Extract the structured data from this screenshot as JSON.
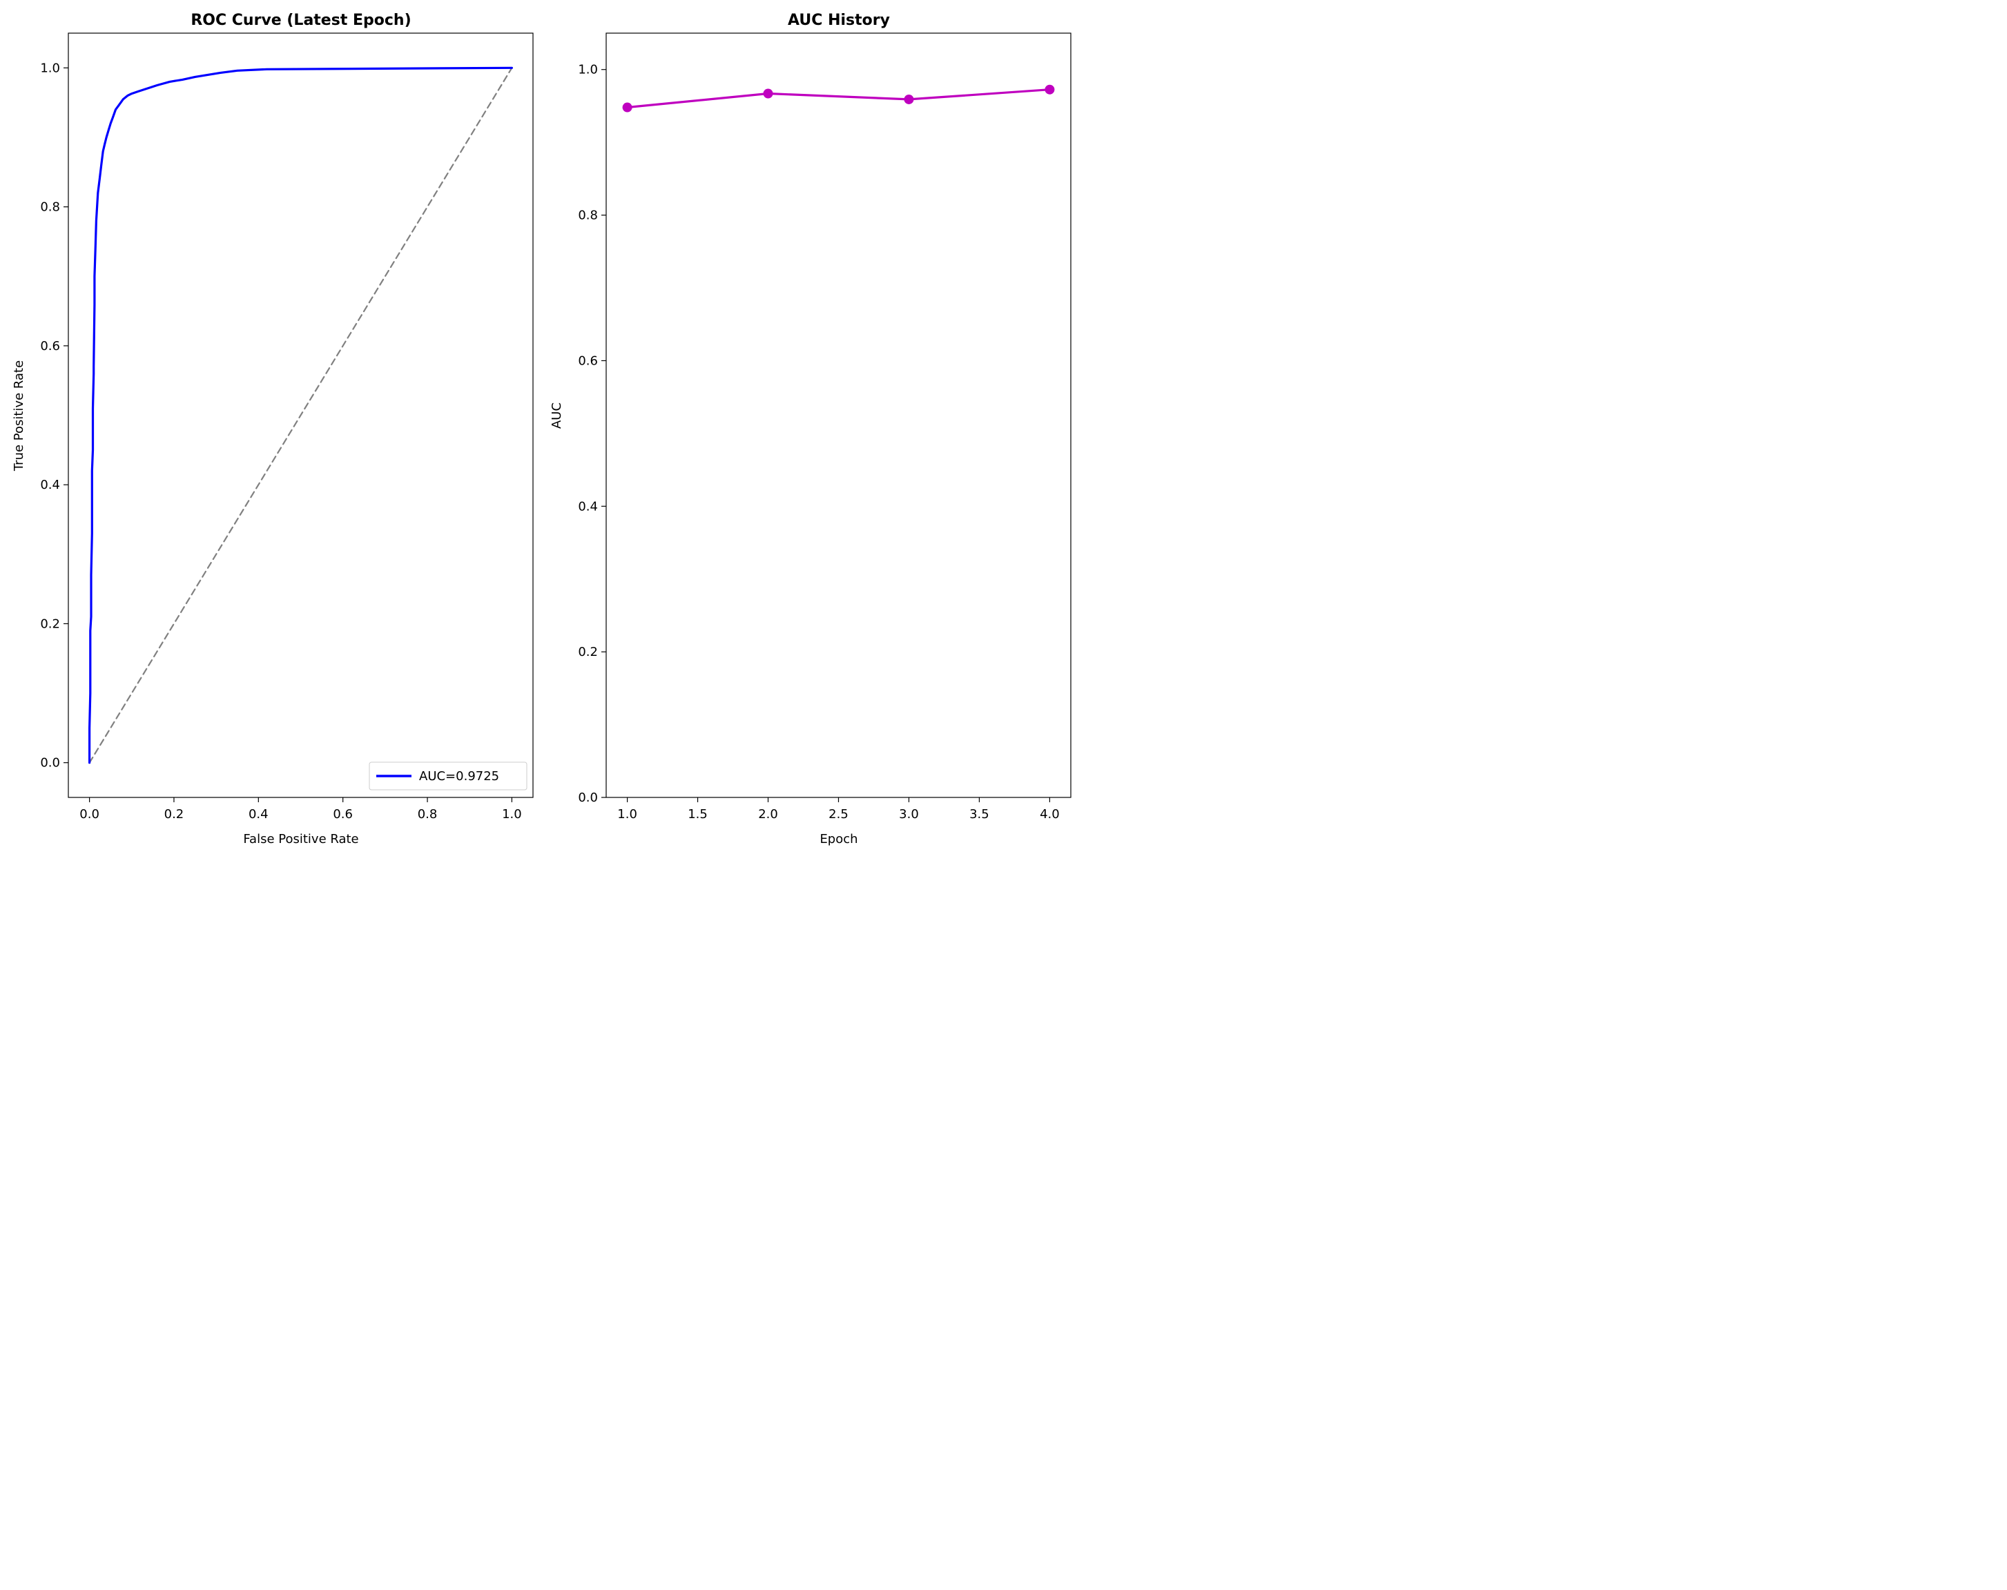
{
  "chart_data": [
    {
      "type": "line",
      "title": "ROC Curve (Latest Epoch)",
      "xlabel": "False Positive Rate",
      "ylabel": "True Positive Rate",
      "xlim": [
        -0.05,
        1.05
      ],
      "ylim": [
        -0.05,
        1.05
      ],
      "xticks": [
        0.0,
        0.2,
        0.4,
        0.6,
        0.8,
        1.0
      ],
      "yticks": [
        0.0,
        0.2,
        0.4,
        0.6,
        0.8,
        1.0
      ],
      "xtick_labels": [
        "0.0",
        "0.2",
        "0.4",
        "0.6",
        "0.8",
        "1.0"
      ],
      "ytick_labels": [
        "0.0",
        "0.2",
        "0.4",
        "0.6",
        "0.8",
        "1.0"
      ],
      "grid": false,
      "legend_position": "lower-right",
      "series": [
        {
          "name": "AUC=0.9725",
          "color": "#0000ff",
          "style": "solid",
          "x": [
            0.0,
            0.0,
            0.002,
            0.002,
            0.004,
            0.004,
            0.006,
            0.006,
            0.008,
            0.008,
            0.01,
            0.01,
            0.012,
            0.012,
            0.014,
            0.016,
            0.018,
            0.02,
            0.024,
            0.028,
            0.032,
            0.036,
            0.04,
            0.045,
            0.05,
            0.056,
            0.062,
            0.068,
            0.074,
            0.08,
            0.09,
            0.1,
            0.115,
            0.135,
            0.16,
            0.19,
            0.22,
            0.25,
            0.28,
            0.31,
            0.35,
            0.42,
            1.0
          ],
          "y": [
            0.0,
            0.05,
            0.1,
            0.19,
            0.21,
            0.27,
            0.33,
            0.42,
            0.45,
            0.51,
            0.56,
            0.57,
            0.66,
            0.7,
            0.74,
            0.78,
            0.8,
            0.82,
            0.84,
            0.86,
            0.88,
            0.89,
            0.9,
            0.91,
            0.92,
            0.93,
            0.94,
            0.945,
            0.95,
            0.955,
            0.96,
            0.963,
            0.966,
            0.97,
            0.975,
            0.98,
            0.983,
            0.987,
            0.99,
            0.993,
            0.996,
            0.998,
            1.0
          ]
        },
        {
          "name": "",
          "color": "#808080",
          "style": "dashed",
          "x": [
            0,
            1
          ],
          "y": [
            0,
            1
          ]
        }
      ]
    },
    {
      "type": "line",
      "title": "AUC History",
      "xlabel": "Epoch",
      "ylabel": "AUC",
      "xlim": [
        0.85,
        4.15
      ],
      "ylim": [
        0,
        1.05
      ],
      "xticks": [
        1.0,
        1.5,
        2.0,
        2.5,
        3.0,
        3.5,
        4.0
      ],
      "yticks": [
        0.0,
        0.2,
        0.4,
        0.6,
        0.8,
        1.0
      ],
      "xtick_labels": [
        "1.0",
        "1.5",
        "2.0",
        "2.5",
        "3.0",
        "3.5",
        "4.0"
      ],
      "ytick_labels": [
        "0.0",
        "0.2",
        "0.4",
        "0.6",
        "0.8",
        "1.0"
      ],
      "grid": false,
      "series": [
        {
          "name": "",
          "color": "#bf00bf",
          "marker": "circle",
          "x": [
            1,
            2,
            3,
            4
          ],
          "y": [
            0.948,
            0.967,
            0.959,
            0.9725
          ]
        }
      ]
    }
  ]
}
